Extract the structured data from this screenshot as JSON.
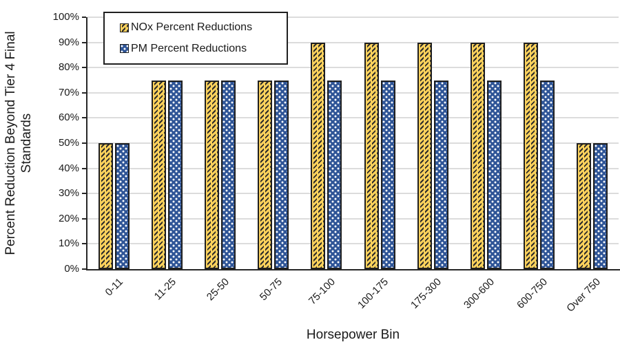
{
  "chart_data": {
    "type": "bar",
    "categories": [
      "0-11",
      "11-25",
      "25-50",
      "50-75",
      "75-100",
      "100-175",
      "175-300",
      "300-600",
      "600-750",
      "Over 750"
    ],
    "series": [
      {
        "name": "NOx Percent Reductions",
        "values": [
          50,
          75,
          75,
          75,
          90,
          90,
          90,
          90,
          90,
          50
        ],
        "fill": "#FBD15C",
        "pattern": "diagonal-hatch",
        "border": "#1F1F1F"
      },
      {
        "name": "PM Percent Reductions",
        "values": [
          50,
          75,
          75,
          75,
          75,
          75,
          75,
          75,
          75,
          50
        ],
        "fill": "#2F5597",
        "pattern": "dots",
        "border": "#1F1F1F"
      }
    ],
    "xlabel": "Horsepower Bin",
    "ylabel": "Percent Reduction Beyond Tier 4 Final Standards",
    "ylabel_lines": [
      "Percent Reduction Beyond Tier 4 Final",
      "Standards"
    ],
    "ylim": [
      0,
      100
    ],
    "yticks": [
      0,
      10,
      20,
      30,
      40,
      50,
      60,
      70,
      80,
      90,
      100
    ],
    "ytick_labels": [
      "0%",
      "10%",
      "20%",
      "30%",
      "40%",
      "50%",
      "60%",
      "70%",
      "80%",
      "90%",
      "100%"
    ],
    "grid": "horizontal",
    "legend_position": "top-left",
    "colors": {
      "gridline": "#DCDCDC",
      "axis": "#262626",
      "text": "#1A1A1A"
    }
  }
}
